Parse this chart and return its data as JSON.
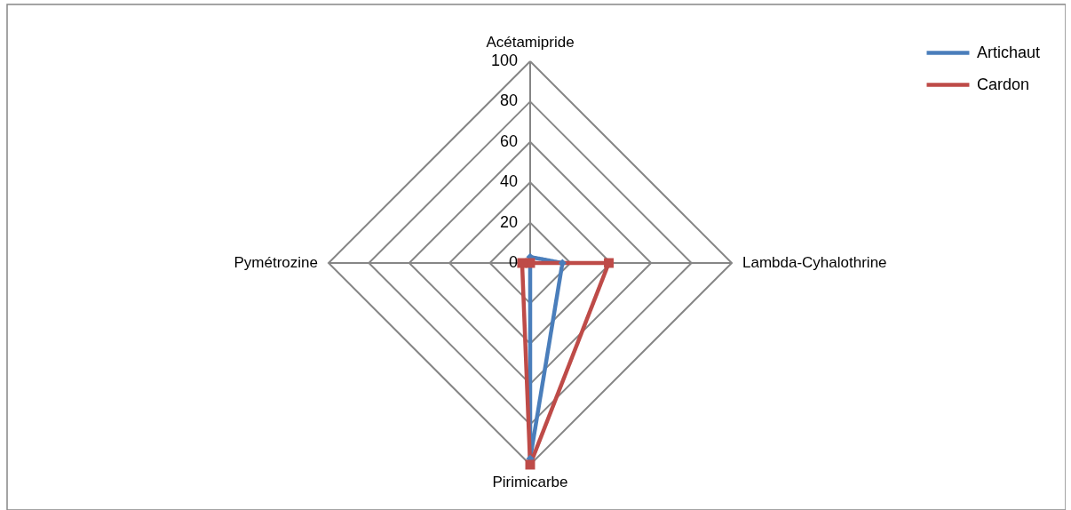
{
  "chart_data": {
    "type": "radar",
    "categories": [
      "Acétamipride",
      "Lambda-Cyhalothrine",
      "Pirimicarbe",
      "Pymétrozine"
    ],
    "series": [
      {
        "name": "Artichaut",
        "color": "#4a7ebb",
        "marker": "diamond",
        "values": [
          3,
          16,
          97,
          0
        ]
      },
      {
        "name": "Cardon",
        "color": "#be4b48",
        "marker": "square",
        "values": [
          0,
          39,
          100,
          4
        ]
      }
    ],
    "ylim": [
      0,
      100
    ],
    "yticks": [
      0,
      20,
      40,
      60,
      80,
      100
    ],
    "grid": true,
    "legend": "top right",
    "line_style": "solid"
  }
}
